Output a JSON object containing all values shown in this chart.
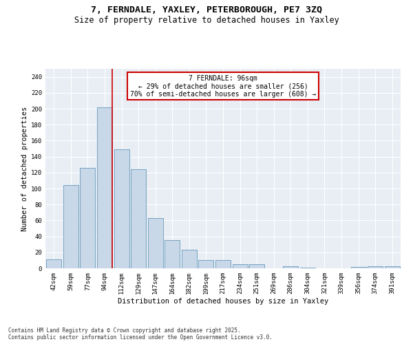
{
  "title_line1": "7, FERNDALE, YAXLEY, PETERBOROUGH, PE7 3ZQ",
  "title_line2": "Size of property relative to detached houses in Yaxley",
  "xlabel": "Distribution of detached houses by size in Yaxley",
  "ylabel": "Number of detached properties",
  "categories": [
    "42sqm",
    "59sqm",
    "77sqm",
    "94sqm",
    "112sqm",
    "129sqm",
    "147sqm",
    "164sqm",
    "182sqm",
    "199sqm",
    "217sqm",
    "234sqm",
    "251sqm",
    "269sqm",
    "286sqm",
    "304sqm",
    "321sqm",
    "339sqm",
    "356sqm",
    "374sqm",
    "391sqm"
  ],
  "values": [
    11,
    104,
    126,
    202,
    149,
    124,
    63,
    35,
    23,
    10,
    10,
    5,
    5,
    0,
    3,
    1,
    0,
    0,
    2,
    3,
    3
  ],
  "bar_color": "#c8d8e8",
  "bar_edge_color": "#6699bb",
  "vline_x_index": 3,
  "vline_color": "#cc0000",
  "annotation_text": "7 FERNDALE: 96sqm\n← 29% of detached houses are smaller (256)\n70% of semi-detached houses are larger (608) →",
  "annotation_box_color": "#cc0000",
  "annotation_text_color": "#000000",
  "ylim": [
    0,
    250
  ],
  "yticks": [
    0,
    20,
    40,
    60,
    80,
    100,
    120,
    140,
    160,
    180,
    200,
    220,
    240
  ],
  "bg_color": "#e8eef4",
  "footer_text": "Contains HM Land Registry data © Crown copyright and database right 2025.\nContains public sector information licensed under the Open Government Licence v3.0.",
  "title_fontsize": 9.5,
  "subtitle_fontsize": 8.5,
  "axis_label_fontsize": 7.5,
  "tick_fontsize": 6.5,
  "annotation_fontsize": 7,
  "footer_fontsize": 5.5
}
